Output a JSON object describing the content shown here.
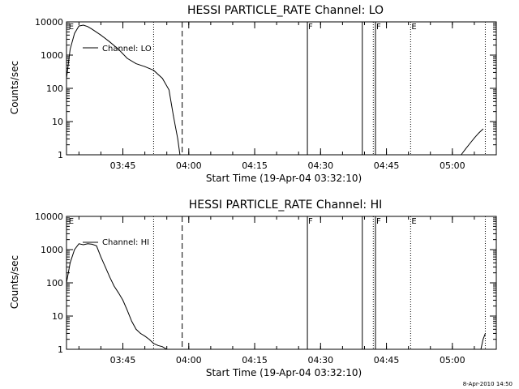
{
  "footer": {
    "timestamp": "8-Apr-2010 14:50"
  },
  "chart_data": [
    {
      "type": "line",
      "title": "HESSI PARTICLE_RATE Channel: LO",
      "xlabel": "Start Time (19-Apr-04 03:32:10)",
      "ylabel": "Counts/sec",
      "yscale": "log",
      "ylim": [
        1,
        10000
      ],
      "xlim": [
        "03:32:10",
        "05:10:00"
      ],
      "xticks": [
        "03:45",
        "04:00",
        "04:15",
        "04:30",
        "04:45",
        "05:00"
      ],
      "yticks": [
        "1",
        "10",
        "100",
        "1000",
        "10000"
      ],
      "legend": "Channel: LO",
      "flags": [
        {
          "label": "E",
          "time": "03:32:30",
          "style": "label"
        },
        {
          "label": "",
          "time": "03:52:00",
          "style": "dotted"
        },
        {
          "label": "",
          "time": "03:58:30",
          "style": "dashed"
        },
        {
          "label": "F",
          "time": "04:27:00",
          "style": "solid"
        },
        {
          "label": "",
          "time": "04:39:30",
          "style": "solid"
        },
        {
          "label": "F",
          "time": "04:42:30",
          "style": "solid"
        },
        {
          "label": "",
          "time": "04:42:00",
          "style": "dotted"
        },
        {
          "label": "E",
          "time": "04:50:30",
          "style": "dotted"
        },
        {
          "label": "",
          "time": "05:07:30",
          "style": "dotted"
        }
      ],
      "series": [
        {
          "segments": [
            {
              "x": [
                "03:32:10",
                "03:33:00",
                "03:34:00",
                "03:35:00",
                "03:36:00",
                "03:37:00",
                "03:38:00",
                "03:40:00",
                "03:42:00",
                "03:44:00",
                "03:46:00",
                "03:48:00",
                "03:50:00",
                "03:52:00",
                "03:54:00",
                "03:55:30",
                "03:56:30",
                "03:57:30",
                "03:58:00"
              ],
              "y": [
                200,
                1500,
                4500,
                7500,
                8000,
                7200,
                6000,
                4000,
                2500,
                1500,
                800,
                550,
                450,
                350,
                200,
                90,
                15,
                3,
                1
              ]
            },
            {
              "x": [
                "05:02:00",
                "05:03:00",
                "05:04:00",
                "05:05:00",
                "05:06:00",
                "05:07:00"
              ],
              "y": [
                1,
                1.5,
                2.2,
                3.2,
                4.5,
                6
              ]
            }
          ]
        }
      ]
    },
    {
      "type": "line",
      "title": "HESSI PARTICLE_RATE Channel: HI",
      "xlabel": "Start Time (19-Apr-04 03:32:10)",
      "ylabel": "Counts/sec",
      "yscale": "log",
      "ylim": [
        1,
        10000
      ],
      "xlim": [
        "03:32:10",
        "05:10:00"
      ],
      "xticks": [
        "03:45",
        "04:00",
        "04:15",
        "04:30",
        "04:45",
        "05:00"
      ],
      "yticks": [
        "1",
        "10",
        "100",
        "1000",
        "10000"
      ],
      "legend": "Channel: HI",
      "flags": [
        {
          "label": "E",
          "time": "03:32:30",
          "style": "label"
        },
        {
          "label": "",
          "time": "03:52:00",
          "style": "dotted"
        },
        {
          "label": "",
          "time": "03:58:30",
          "style": "dashed"
        },
        {
          "label": "F",
          "time": "04:27:00",
          "style": "solid"
        },
        {
          "label": "",
          "time": "04:39:30",
          "style": "solid"
        },
        {
          "label": "F",
          "time": "04:42:30",
          "style": "solid"
        },
        {
          "label": "",
          "time": "04:42:00",
          "style": "dotted"
        },
        {
          "label": "E",
          "time": "04:50:30",
          "style": "dotted"
        },
        {
          "label": "",
          "time": "05:07:30",
          "style": "dotted"
        }
      ],
      "series": [
        {
          "segments": [
            {
              "x": [
                "03:32:10",
                "03:33:00",
                "03:34:00",
                "03:35:00",
                "03:36:00",
                "03:37:00",
                "03:38:00",
                "03:39:00",
                "03:40:00",
                "03:41:00",
                "03:42:00",
                "03:43:00",
                "03:44:00",
                "03:45:00",
                "03:46:00",
                "03:47:00",
                "03:48:00",
                "03:49:00",
                "03:50:00",
                "03:51:00",
                "03:52:00",
                "03:53:00",
                "03:54:00",
                "03:55:00",
                "03:56:00"
              ],
              "y": [
                100,
                400,
                1000,
                1500,
                1400,
                1500,
                1450,
                1300,
                600,
                300,
                150,
                80,
                50,
                30,
                15,
                7,
                4,
                3,
                2.5,
                2,
                1.5,
                1.3,
                1.2,
                1,
                1
              ]
            },
            {
              "x": [
                "05:06:30",
                "05:07:00",
                "05:07:30"
              ],
              "y": [
                1,
                2,
                3
              ]
            }
          ]
        }
      ]
    }
  ]
}
